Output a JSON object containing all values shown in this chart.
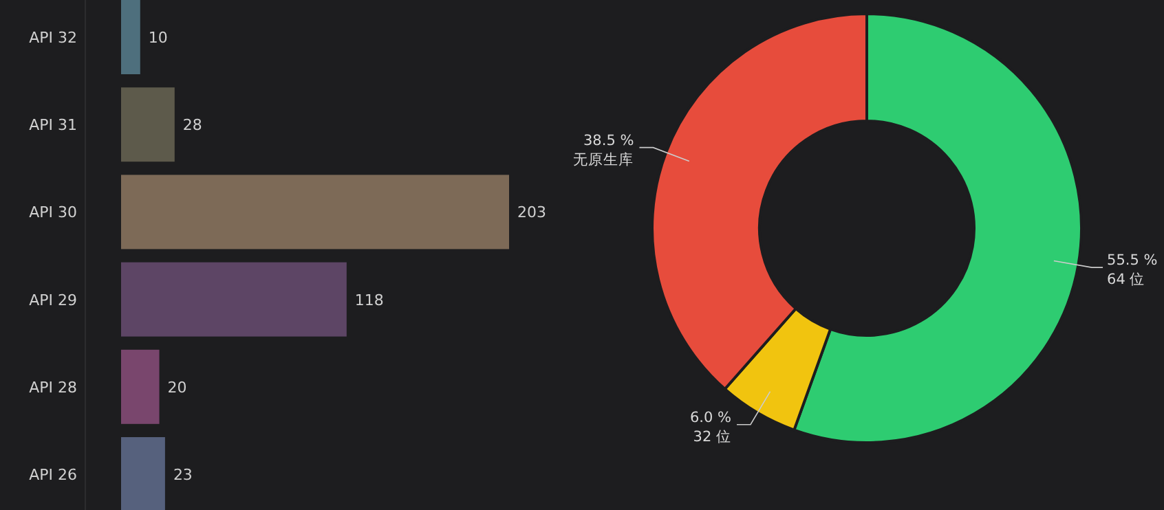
{
  "chart_data": [
    {
      "type": "bar",
      "orientation": "horizontal",
      "categories": [
        "API 32",
        "API 31",
        "API 30",
        "API 29",
        "API 28",
        "API 26"
      ],
      "values": [
        10,
        28,
        203,
        118,
        20,
        23
      ],
      "colors": [
        "#4e6f7d",
        "#5d5a4b",
        "#7d6a57",
        "#5d4565",
        "#79466d",
        "#56617d"
      ],
      "data_labels": true
    },
    {
      "type": "donut",
      "categories": [
        "64 位",
        "32 位",
        "无原生库"
      ],
      "values": [
        55.5,
        6.0,
        38.5
      ],
      "value_labels": [
        "55.5 %",
        "6.0 %",
        "38.5 %"
      ],
      "colors": [
        "#2ecc71",
        "#f1c40f",
        "#e74c3c"
      ]
    }
  ]
}
